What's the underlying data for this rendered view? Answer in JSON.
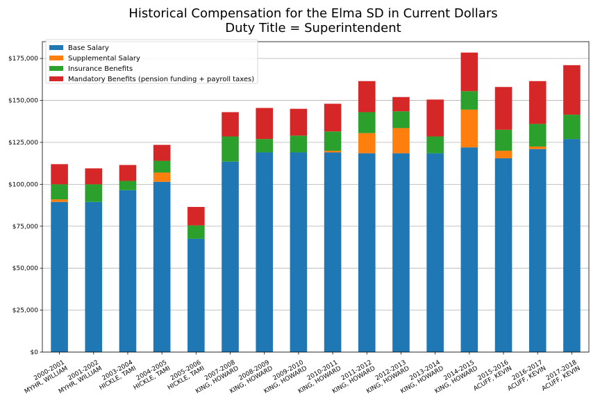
{
  "chart_data": {
    "type": "bar",
    "stacked": true,
    "title_line1": "Historical Compensation for the Elma SD in Current Dollars",
    "title_line2": "Duty Title = Superintendent",
    "xlabel": "",
    "ylabel": "",
    "ylim": [
      0,
      185000
    ],
    "grid": "horizontal",
    "legend_position": "top-left",
    "y_ticks": [
      0,
      25000,
      50000,
      75000,
      100000,
      125000,
      150000,
      175000
    ],
    "y_tick_labels": [
      "$0",
      "$25,000",
      "$50,000",
      "$75,000",
      "$100,000",
      "$125,000",
      "$150,000",
      "$175,000"
    ],
    "categories": [
      [
        "2000-2001",
        "MYHR, WILLIAM"
      ],
      [
        "2001-2002",
        "MYHR, WILLIAM"
      ],
      [
        "2003-2004",
        "HICKLE, TAMI"
      ],
      [
        "2004-2005",
        "HICKLE, TAMI"
      ],
      [
        "2005-2006",
        "HICKLE, TAMI"
      ],
      [
        "2007-2008",
        "KING, HOWARD"
      ],
      [
        "2008-2009",
        "KING, HOWARD"
      ],
      [
        "2009-2010",
        "KING, HOWARD"
      ],
      [
        "2010-2011",
        "KING, HOWARD"
      ],
      [
        "2011-2012",
        "KING, HOWARD"
      ],
      [
        "2012-2013",
        "KING, HOWARD"
      ],
      [
        "2013-2014",
        "KING, HOWARD"
      ],
      [
        "2014-2015",
        "KING, HOWARD"
      ],
      [
        "2015-2016",
        "ACUFF, KEVIN"
      ],
      [
        "2016-2017",
        "ACUFF, KEVIN"
      ],
      [
        "2017-2018",
        "ACUFF, KEVIN"
      ]
    ],
    "series": [
      {
        "name": "Base Salary",
        "color": "#1f77b4",
        "values": [
          89500,
          89500,
          96500,
          101500,
          67500,
          113500,
          119000,
          119000,
          119000,
          118500,
          118500,
          118500,
          122000,
          115500,
          121000,
          127000
        ]
      },
      {
        "name": "Supplemental Salary",
        "color": "#ff7f0e",
        "values": [
          1500,
          0,
          0,
          5500,
          0,
          0,
          0,
          0,
          1000,
          12000,
          15000,
          0,
          22500,
          4500,
          1500,
          0
        ]
      },
      {
        "name": "Insurance Benefits",
        "color": "#2ca02c",
        "values": [
          9000,
          10500,
          5500,
          7000,
          8000,
          15000,
          8000,
          10000,
          11500,
          12500,
          10000,
          10000,
          11000,
          12500,
          13500,
          14500
        ]
      },
      {
        "name": "Mandatory Benefits (pension funding + payroll taxes)",
        "color": "#d62728",
        "values": [
          12000,
          9500,
          9500,
          9500,
          11000,
          14500,
          18500,
          16000,
          16500,
          18500,
          8500,
          22000,
          23000,
          25500,
          25500,
          29500
        ]
      }
    ]
  }
}
